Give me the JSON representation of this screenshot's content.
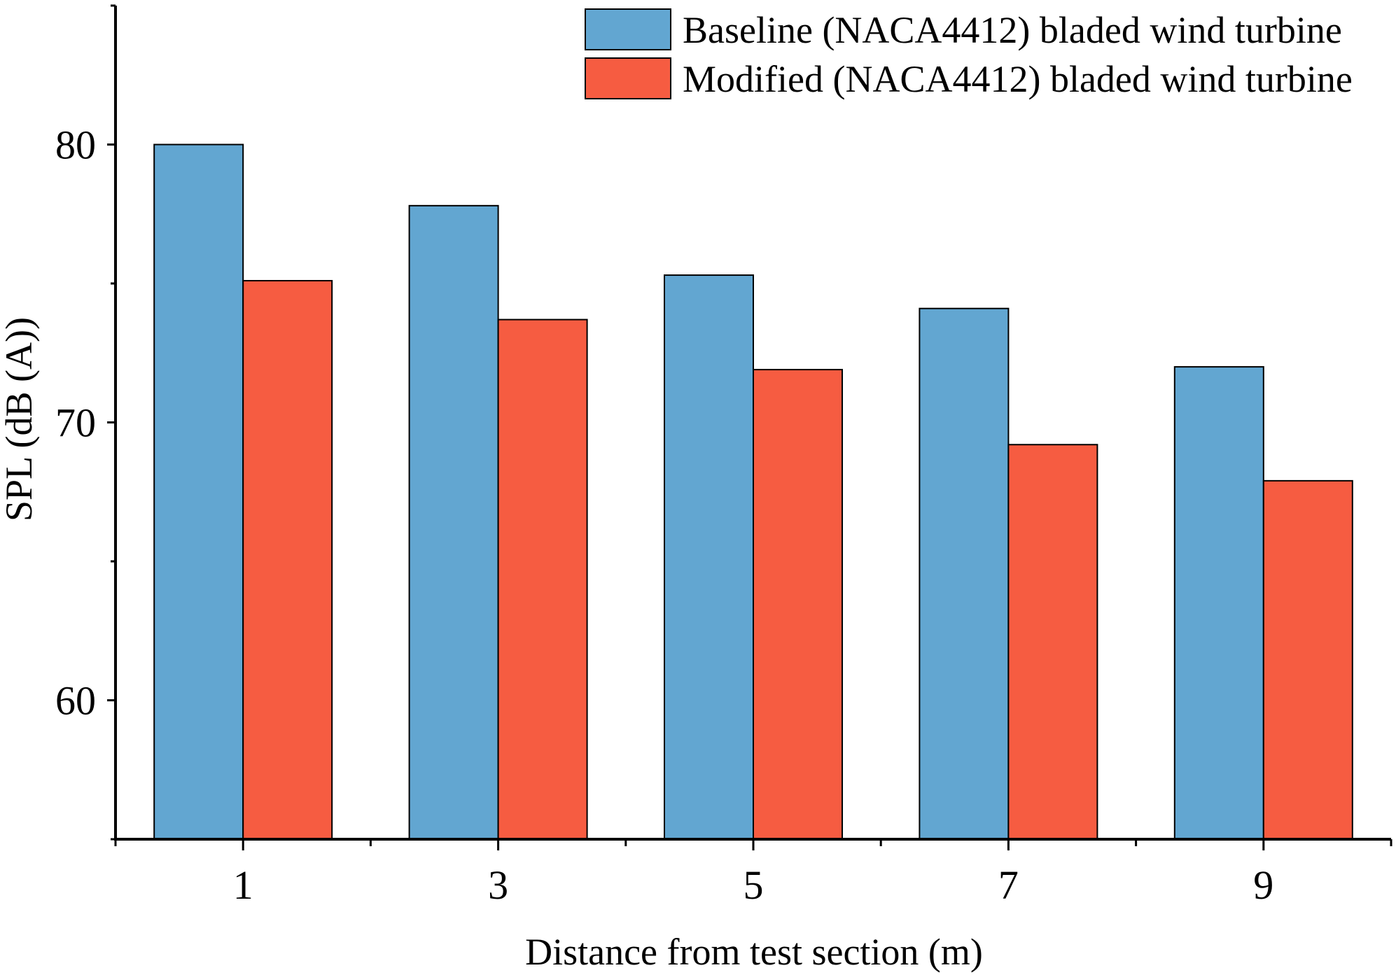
{
  "chart_data": {
    "type": "bar",
    "xlabel": "Distance from test section (m)",
    "ylabel": "SPL (dB (A))",
    "categories": [
      "1",
      "3",
      "5",
      "7",
      "9"
    ],
    "ylim": [
      55,
      85
    ],
    "yticks": [
      60,
      70,
      80
    ],
    "grid": false,
    "legend_position": "top-right",
    "series": [
      {
        "name": "Baseline (NACA4412) bladed wind turbine",
        "color": "#62A6D1",
        "values": [
          80.0,
          77.8,
          75.3,
          74.1,
          72.0
        ]
      },
      {
        "name": "Modified (NACA4412) bladed wind turbine",
        "color": "#F65C41",
        "values": [
          75.1,
          73.7,
          71.9,
          69.2,
          67.9
        ]
      }
    ]
  }
}
